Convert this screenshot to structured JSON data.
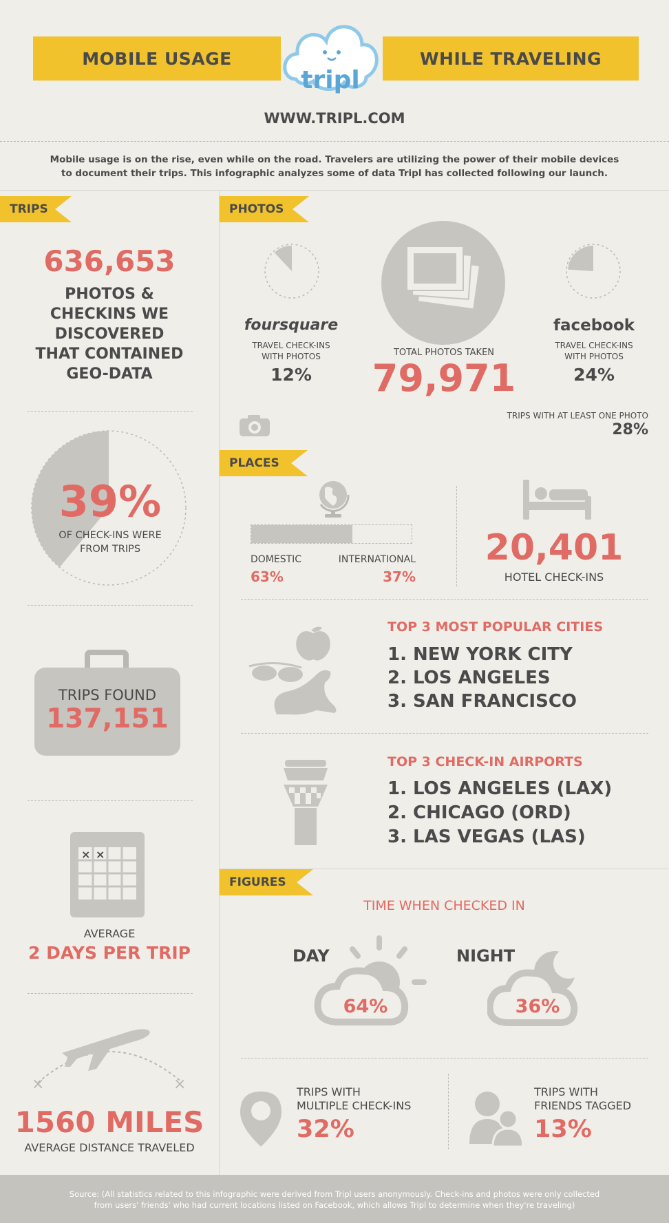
{
  "header": {
    "title_left": "MOBILE USAGE",
    "title_right": "WHILE TRAVELING",
    "logo_text": "tripl",
    "url": "WWW.TRIPL.COM",
    "intro_line1": "Mobile usage is on the rise, even while on the road. Travelers are utilizing the power of their mobile devices",
    "intro_line2": "to document their trips. This infographic analyzes some of data Tripl has collected following our launch."
  },
  "trips": {
    "tag": "TRIPS",
    "photos_count": "636,653",
    "photos_desc": [
      "PHOTOS &",
      "CHECKINS WE",
      "DISCOVERED",
      "THAT CONTAINED",
      "GEO-DATA"
    ],
    "checkins_pct": "39%",
    "checkins_fraction": 0.39,
    "checkins_desc": [
      "OF CHECK-INS WERE",
      "FROM TRIPS"
    ],
    "found_label": "TRIPS FOUND",
    "found_value": "137,151",
    "avg_label": "AVERAGE",
    "avg_value": "2 DAYS PER TRIP",
    "distance_value": "1560 MILES",
    "distance_label": "AVERAGE DISTANCE TRAVELED"
  },
  "photos": {
    "tag": "PHOTOS",
    "foursquare_brand": "foursquare",
    "foursquare_label": [
      "TRAVEL CHECK-INS",
      "WITH PHOTOS"
    ],
    "foursquare_pct": "12%",
    "foursquare_fraction": 0.12,
    "total_label": "TOTAL PHOTOS TAKEN",
    "total_value": "79,971",
    "facebook_brand": "facebook",
    "facebook_label": [
      "TRAVEL CHECK-INS",
      "WITH PHOTOS"
    ],
    "facebook_pct": "24%",
    "facebook_fraction": 0.24,
    "trips_photo_label": "TRIPS WITH AT LEAST ONE PHOTO",
    "trips_photo_pct": "28%"
  },
  "places": {
    "tag": "PLACES",
    "domestic_label": "DOMESTIC",
    "domestic_pct": "63%",
    "domestic_fraction": 0.63,
    "international_label": "INTERNATIONAL",
    "international_pct": "37%",
    "hotel_value": "20,401",
    "hotel_label": "HOTEL CHECK-INS",
    "cities_title": "TOP 3 MOST POPULAR CITIES",
    "cities": [
      "1. NEW YORK CITY",
      "2. LOS ANGELES",
      "3. SAN FRANCISCO"
    ],
    "airports_title": "TOP 3 CHECK-IN AIRPORTS",
    "airports": [
      "1. LOS ANGELES (LAX)",
      "2. CHICAGO (ORD)",
      "3. LAS VEGAS (LAS)"
    ]
  },
  "figures": {
    "tag": "FIGURES",
    "time_title": "TIME WHEN CHECKED IN",
    "day_label": "DAY",
    "day_pct": "64%",
    "night_label": "NIGHT",
    "night_pct": "36%",
    "multi_label": [
      "TRIPS WITH",
      "MULTIPLE CHECK-INS"
    ],
    "multi_pct": "32%",
    "friends_label": [
      "TRIPS WITH",
      "FRIENDS TAGGED"
    ],
    "friends_pct": "13%"
  },
  "footer": {
    "line1": "Source: (All statistics related to this infographic were derived from Tripl users anonymously. Check-ins and photos were only collected",
    "line2": "from users' friends' who had current locations listed on Facebook, which allows Tripl to determine when they're traveling)"
  },
  "colors": {
    "accent": "#f1c22b",
    "red": "#e06b64",
    "grey": "#4a4a4a",
    "icon": "#b9b8b3",
    "background": "#efeee9"
  }
}
